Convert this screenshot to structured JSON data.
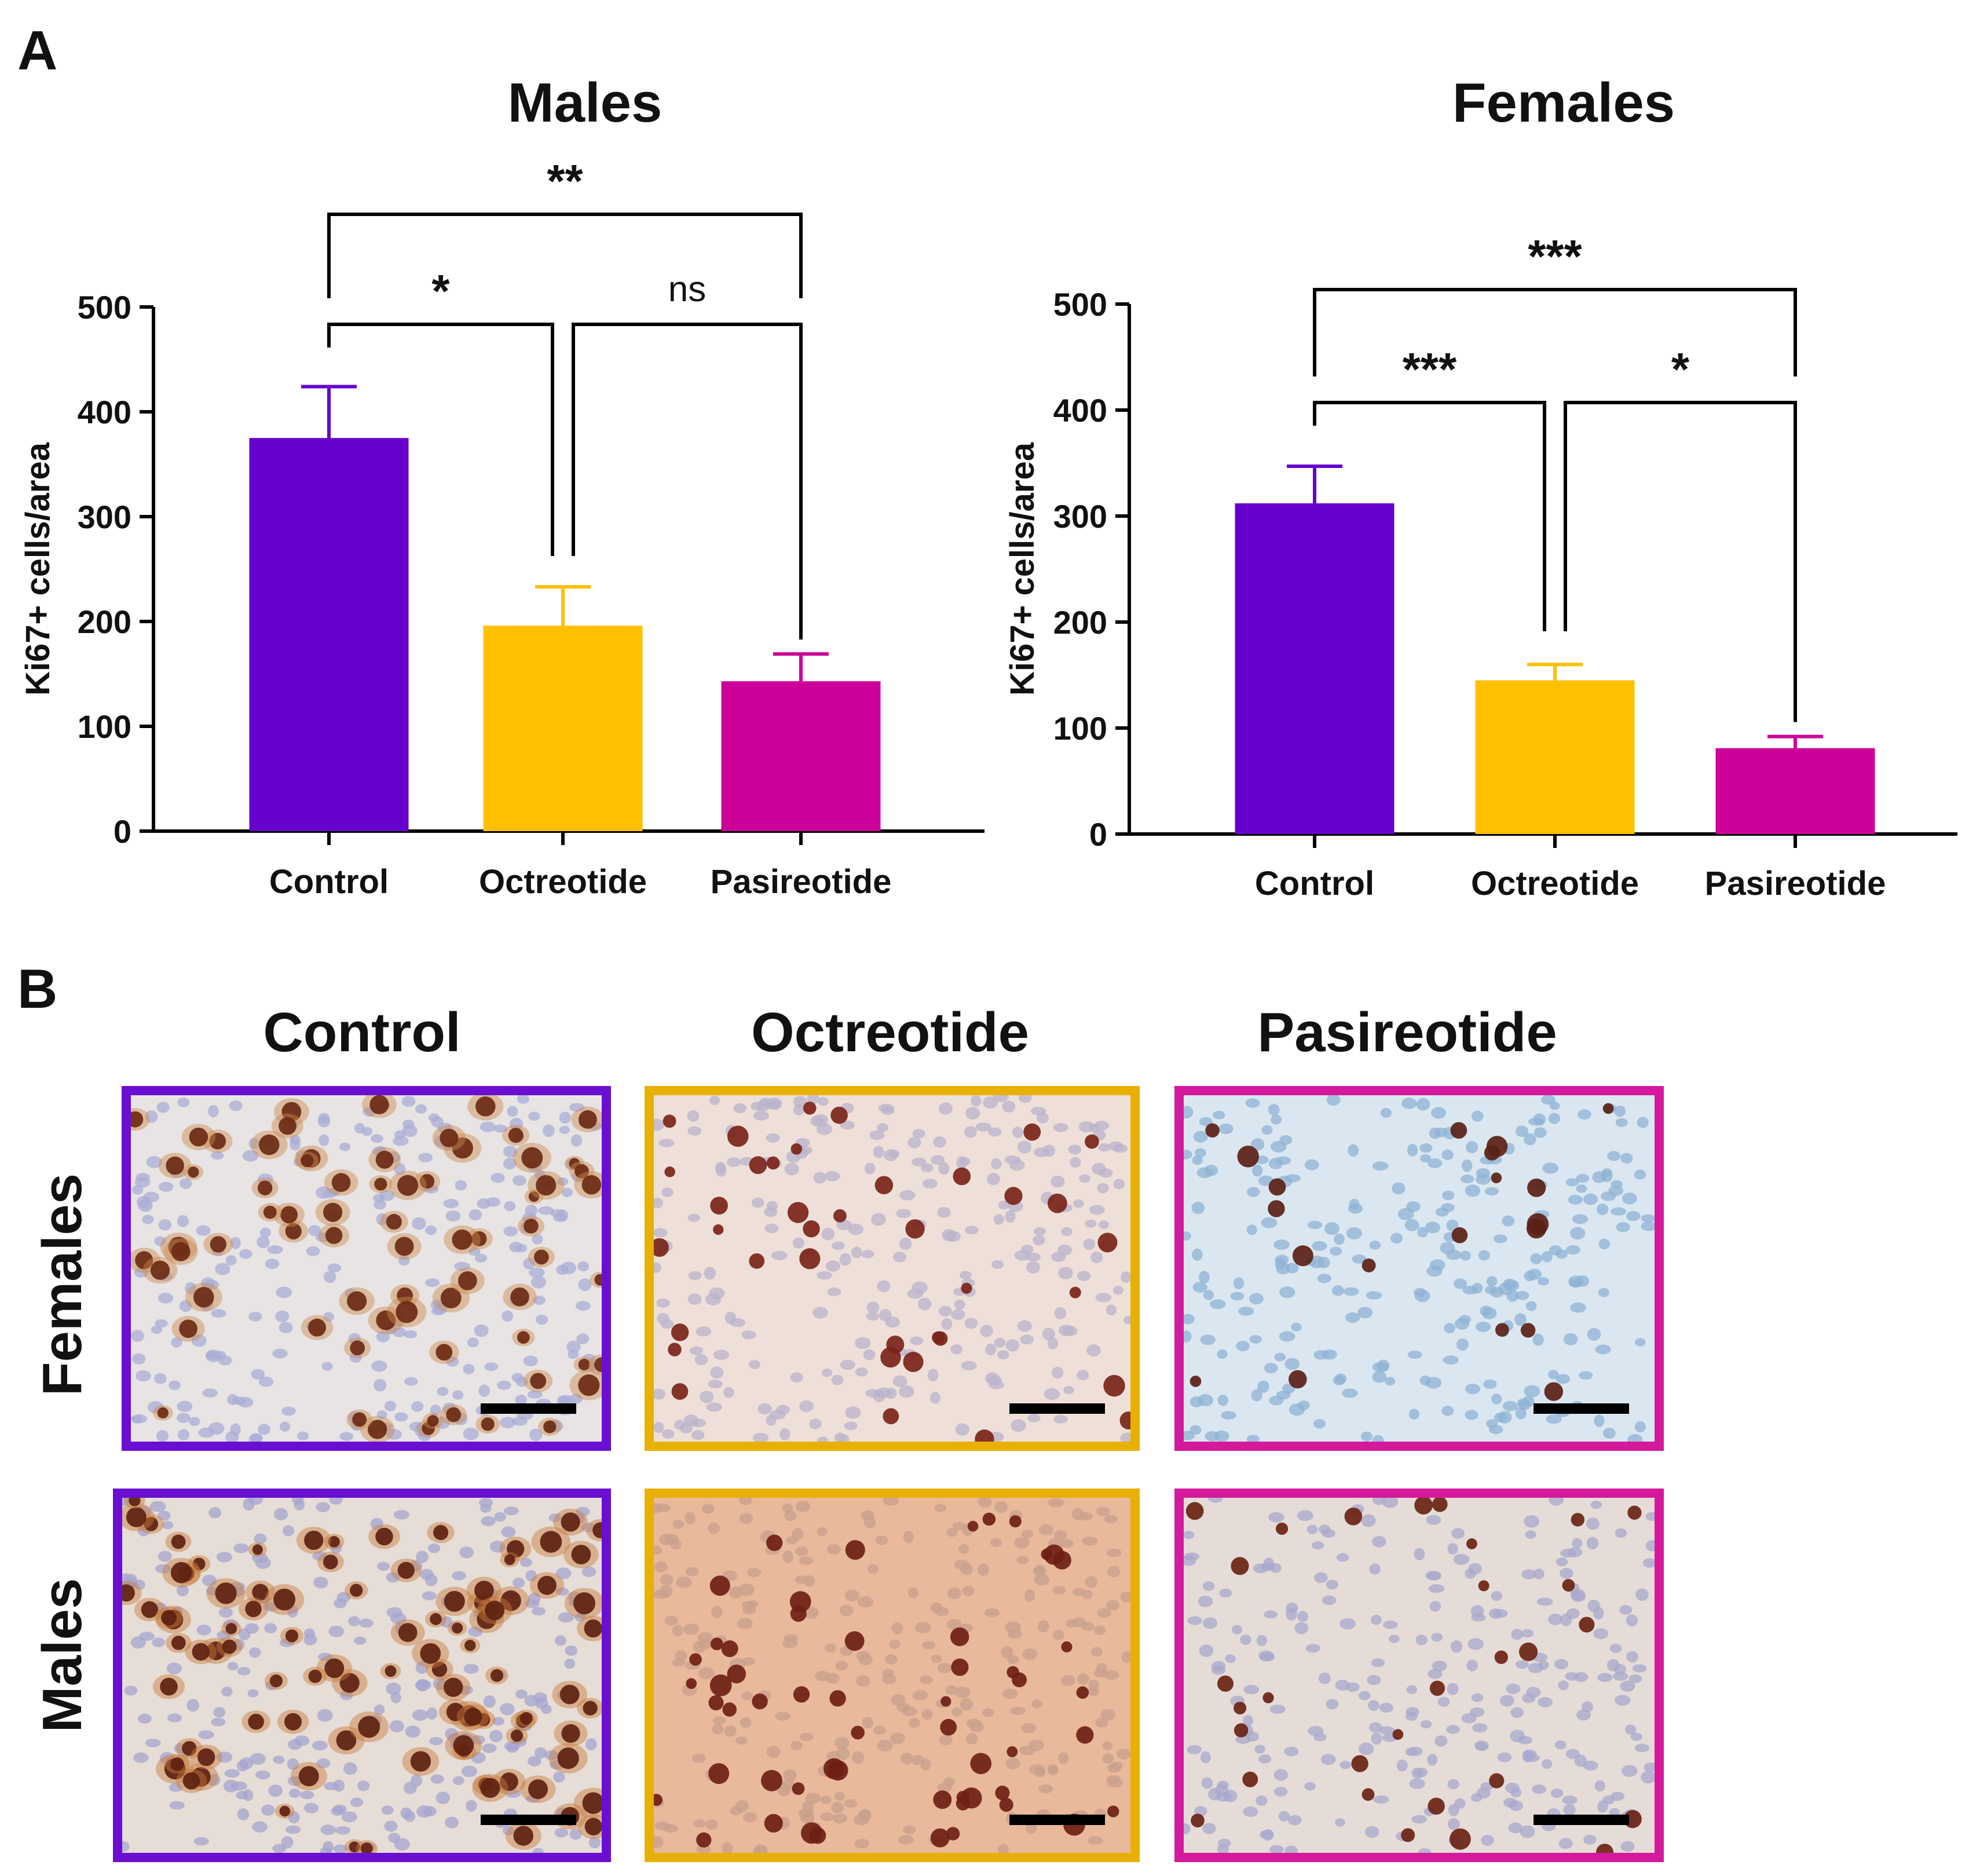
{
  "panel_a": {
    "label": "A"
  },
  "panel_b": {
    "label": "B",
    "columns": [
      "Control",
      "Octreotide",
      "Pasireotide"
    ],
    "rows": [
      "Females",
      "Males"
    ],
    "images": [
      {
        "row": "Females",
        "column": "Control",
        "description_icon": "ki67-ihc-micrograph",
        "tissue": "#e8e4e4",
        "nucleus": "#a9aed6",
        "stain": "#6b2a12",
        "halo": "#cc8a4e"
      },
      {
        "row": "Females",
        "column": "Octreotide",
        "description_icon": "ki67-ihc-micrograph",
        "tissue": "#eee0d8",
        "nucleus": "#b9b3cc",
        "stain": "#7a2418",
        "halo": "#d59a77"
      },
      {
        "row": "Females",
        "column": "Pasireotide",
        "description_icon": "ki67-ihc-micrograph",
        "tissue": "#dbe7f0",
        "nucleus": "#8fb3d4",
        "stain": "#5a2116",
        "halo": "#b08a7a"
      },
      {
        "row": "Males",
        "column": "Control",
        "description_icon": "ki67-ihc-micrograph",
        "tissue": "#e6ddd6",
        "nucleus": "#a5a4cf",
        "stain": "#5e2210",
        "halo": "#c77a3a"
      },
      {
        "row": "Males",
        "column": "Octreotide",
        "description_icon": "ki67-ihc-micrograph",
        "tissue": "#e9b99b",
        "nucleus": "#c7a08c",
        "stain": "#6e1f14",
        "halo": "#d18a60"
      },
      {
        "row": "Males",
        "column": "Pasireotide",
        "description_icon": "ki67-ihc-micrograph",
        "tissue": "#e5dcd8",
        "nucleus": "#a8a8cc",
        "stain": "#6a2313",
        "halo": "#c5865e"
      }
    ]
  },
  "colors": {
    "Control": "#6600cc",
    "Octreotide": "#ffc000",
    "Pasireotide": "#cc0099",
    "Control_frame": "#6a0fd1",
    "Octreotide_frame": "#e8b000",
    "Pasireotide_frame": "#d4199c",
    "axis": "#000000"
  },
  "chart_data": [
    {
      "id": "males",
      "type": "bar",
      "title": "Males",
      "ylabel": "Ki67+ cells/area",
      "xlabel": "",
      "categories": [
        "Control",
        "Octreotide",
        "Pasireotide"
      ],
      "values": [
        375,
        196,
        143
      ],
      "error_upper": [
        424,
        233,
        169
      ],
      "ylim": [
        0,
        500
      ],
      "yticks": [
        0,
        100,
        200,
        300,
        400,
        500
      ],
      "ytick_labels": [
        "0",
        "100",
        "200",
        "300",
        "400",
        "500"
      ],
      "significance": [
        {
          "from": "Control",
          "to": "Pasireotide",
          "label": "**",
          "level": 2
        },
        {
          "from": "Control",
          "to": "Octreotide",
          "label": "*",
          "level": 1
        },
        {
          "from": "Octreotide",
          "to": "Pasireotide",
          "label": "ns",
          "level": 1
        }
      ]
    },
    {
      "id": "females",
      "type": "bar",
      "title": "Females",
      "ylabel": "Ki67+ cells/area",
      "xlabel": "",
      "categories": [
        "Control",
        "Octreotide",
        "Pasireotide"
      ],
      "values": [
        312,
        145,
        81
      ],
      "error_upper": [
        347,
        160,
        92
      ],
      "ylim": [
        0,
        500
      ],
      "yticks": [
        0,
        100,
        200,
        300,
        400,
        500
      ],
      "ytick_labels": [
        "0",
        "100",
        "200",
        "300",
        "400",
        "500"
      ],
      "significance": [
        {
          "from": "Control",
          "to": "Pasireotide",
          "label": "***",
          "level": 2
        },
        {
          "from": "Control",
          "to": "Octreotide",
          "label": "***",
          "level": 1
        },
        {
          "from": "Octreotide",
          "to": "Pasireotide",
          "label": "*",
          "level": 1
        }
      ]
    }
  ]
}
